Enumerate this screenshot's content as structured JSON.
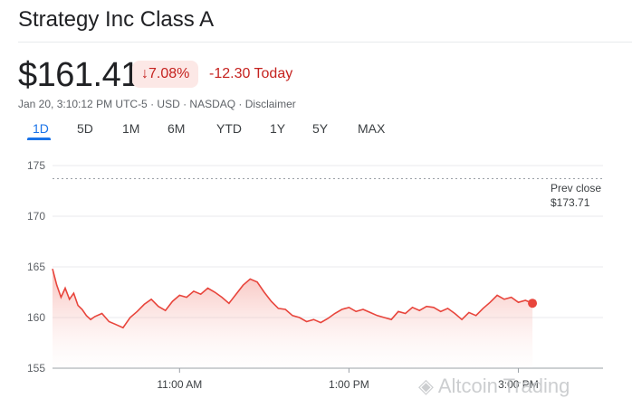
{
  "header": {
    "title": "Strategy Inc Class A",
    "price": "$161.41",
    "change_percent": "7.08%",
    "change_today": "-12.30 Today",
    "meta": "Jan 20, 3:10:12 PM UTC-5 · USD · NASDAQ · Disclaimer"
  },
  "range_tabs": [
    {
      "label": "1D",
      "active": true
    },
    {
      "label": "5D",
      "active": false
    },
    {
      "label": "1M",
      "active": false
    },
    {
      "label": "6M",
      "active": false
    },
    {
      "label": "YTD",
      "active": false
    },
    {
      "label": "1Y",
      "active": false
    },
    {
      "label": "5Y",
      "active": false
    },
    {
      "label": "MAX",
      "active": false
    }
  ],
  "prev_close": {
    "line1": "Prev close",
    "line2": "$173.71"
  },
  "watermark": "Altcoin Trading",
  "colors": {
    "down": "#c5221f",
    "accent": "#1a73e8",
    "line": "#e8453c"
  },
  "chart_data": {
    "type": "area",
    "y_ticks": [
      "155",
      "160",
      "165",
      "170",
      "175"
    ],
    "x_ticks": [
      "11:00 AM",
      "1:00 PM",
      "3:00 PM"
    ],
    "ylim": [
      155,
      175
    ],
    "prev_close": 173.71,
    "series": [
      {
        "x": [
          "9:30",
          "9:33",
          "9:36",
          "9:39",
          "9:42",
          "9:45",
          "9:48",
          "9:51",
          "9:54",
          "9:57",
          "10:00",
          "10:05",
          "10:10",
          "10:15",
          "10:20",
          "10:25",
          "10:30",
          "10:35",
          "10:40",
          "10:45",
          "10:50",
          "10:55",
          "11:00",
          "11:05",
          "11:10",
          "11:15",
          "11:20",
          "11:25",
          "11:30",
          "11:35",
          "11:40",
          "11:45",
          "11:50",
          "11:55",
          "12:00",
          "12:05",
          "12:10",
          "12:15",
          "12:20",
          "12:25",
          "12:30",
          "12:35",
          "12:40",
          "12:45",
          "12:50",
          "12:55",
          "13:00",
          "13:05",
          "13:10",
          "13:15",
          "13:20",
          "13:25",
          "13:30",
          "13:35",
          "13:40",
          "13:45",
          "13:50",
          "13:55",
          "14:00",
          "14:05",
          "14:10",
          "14:15",
          "14:20",
          "14:25",
          "14:30",
          "14:35",
          "14:40",
          "14:45",
          "14:50",
          "14:55",
          "15:00",
          "15:05",
          "15:10"
        ],
        "values": [
          164.8,
          163.2,
          162.0,
          162.9,
          161.8,
          162.4,
          161.2,
          160.8,
          160.2,
          159.8,
          160.1,
          160.4,
          159.6,
          159.3,
          159.0,
          160.0,
          160.6,
          161.3,
          161.8,
          161.1,
          160.7,
          161.6,
          162.2,
          162.0,
          162.6,
          162.3,
          162.9,
          162.5,
          162.0,
          161.4,
          162.3,
          163.2,
          163.8,
          163.5,
          162.5,
          161.6,
          160.9,
          160.8,
          160.2,
          160.0,
          159.6,
          159.8,
          159.5,
          159.9,
          160.4,
          160.8,
          161.0,
          160.6,
          160.8,
          160.5,
          160.2,
          160.0,
          159.8,
          160.6,
          160.4,
          161.0,
          160.7,
          161.1,
          161.0,
          160.6,
          160.9,
          160.4,
          159.8,
          160.5,
          160.2,
          160.9,
          161.5,
          162.2,
          161.8,
          162.0,
          161.5,
          161.7,
          161.41
        ]
      }
    ]
  }
}
